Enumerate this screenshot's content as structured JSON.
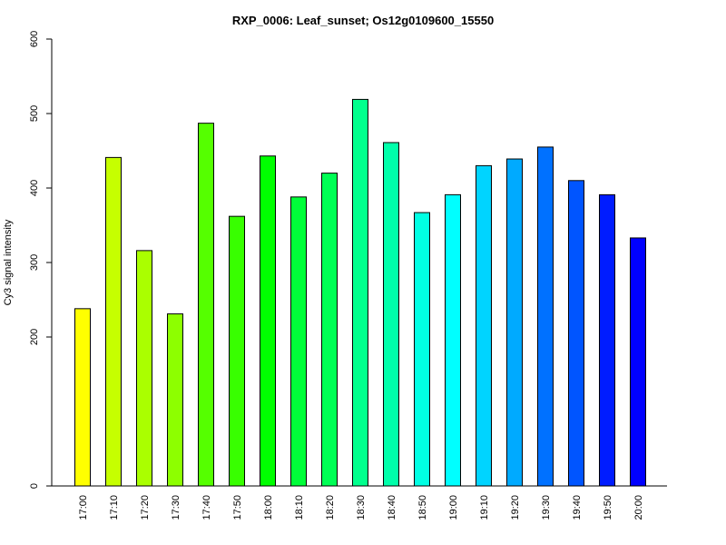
{
  "chart_data": {
    "type": "bar",
    "title": "RXP_0006: Leaf_sunset; Os12g0109600_15550",
    "xlabel": "",
    "ylabel": "Cy3 signal intensity",
    "yticks": [
      "0",
      "200",
      "300",
      "400",
      "500",
      "600"
    ],
    "ylim": [
      0,
      600
    ],
    "categories": [
      "17:00",
      "17:10",
      "17:20",
      "17:30",
      "17:40",
      "17:50",
      "18:00",
      "18:10",
      "18:20",
      "18:30",
      "18:40",
      "18:50",
      "19:00",
      "19:10",
      "19:20",
      "19:30",
      "19:40",
      "19:50",
      "20:00"
    ],
    "values": [
      238,
      441,
      316,
      231,
      487,
      362,
      443,
      388,
      420,
      519,
      461,
      367,
      391,
      430,
      439,
      455,
      410,
      391,
      333
    ],
    "colors": [
      "#FFFF00",
      "#C6FF00",
      "#AAFF00",
      "#8DFF00",
      "#55FF00",
      "#38FF00",
      "#00FF00",
      "#00FF39",
      "#00FF55",
      "#00FF8D",
      "#00FFAA",
      "#00FFE3",
      "#00FFFF",
      "#00D4FF",
      "#00AAFF",
      "#0071FF",
      "#0055FF",
      "#001CFF",
      "#0000FF"
    ],
    "grid": false,
    "legend": "none"
  }
}
